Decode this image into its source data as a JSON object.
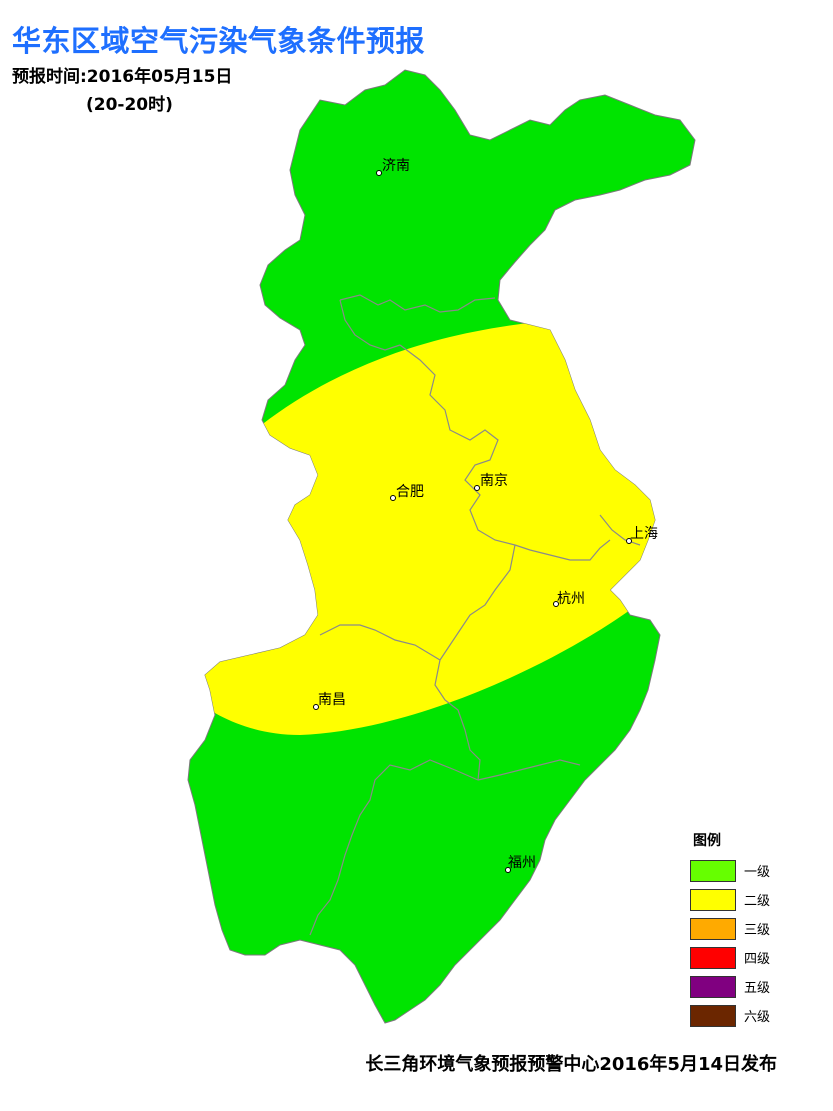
{
  "header": {
    "title": "华东区域空气污染气象条件预报",
    "forecast_time": "预报时间:2016年05月15日",
    "period": "(20-20时)"
  },
  "map": {
    "colors": {
      "level1_region": "#00e400",
      "level2_region": "#ffff00",
      "border": "#8a8a8a"
    },
    "cities": [
      {
        "name": "济南"
      },
      {
        "name": "合肥"
      },
      {
        "name": "南京"
      },
      {
        "name": "上海"
      },
      {
        "name": "杭州"
      },
      {
        "name": "南昌"
      },
      {
        "name": "福州"
      }
    ]
  },
  "legend": {
    "title": "图例",
    "items": [
      {
        "label": "一级",
        "color": "#66ff00"
      },
      {
        "label": "二级",
        "color": "#ffff00"
      },
      {
        "label": "三级",
        "color": "#ffaa00"
      },
      {
        "label": "四级",
        "color": "#ff0000"
      },
      {
        "label": "五级",
        "color": "#800080"
      },
      {
        "label": "六级",
        "color": "#6b2600"
      }
    ]
  },
  "footer": {
    "issuer": "长三角环境气象预报预警中心2016年5月14日发布"
  }
}
